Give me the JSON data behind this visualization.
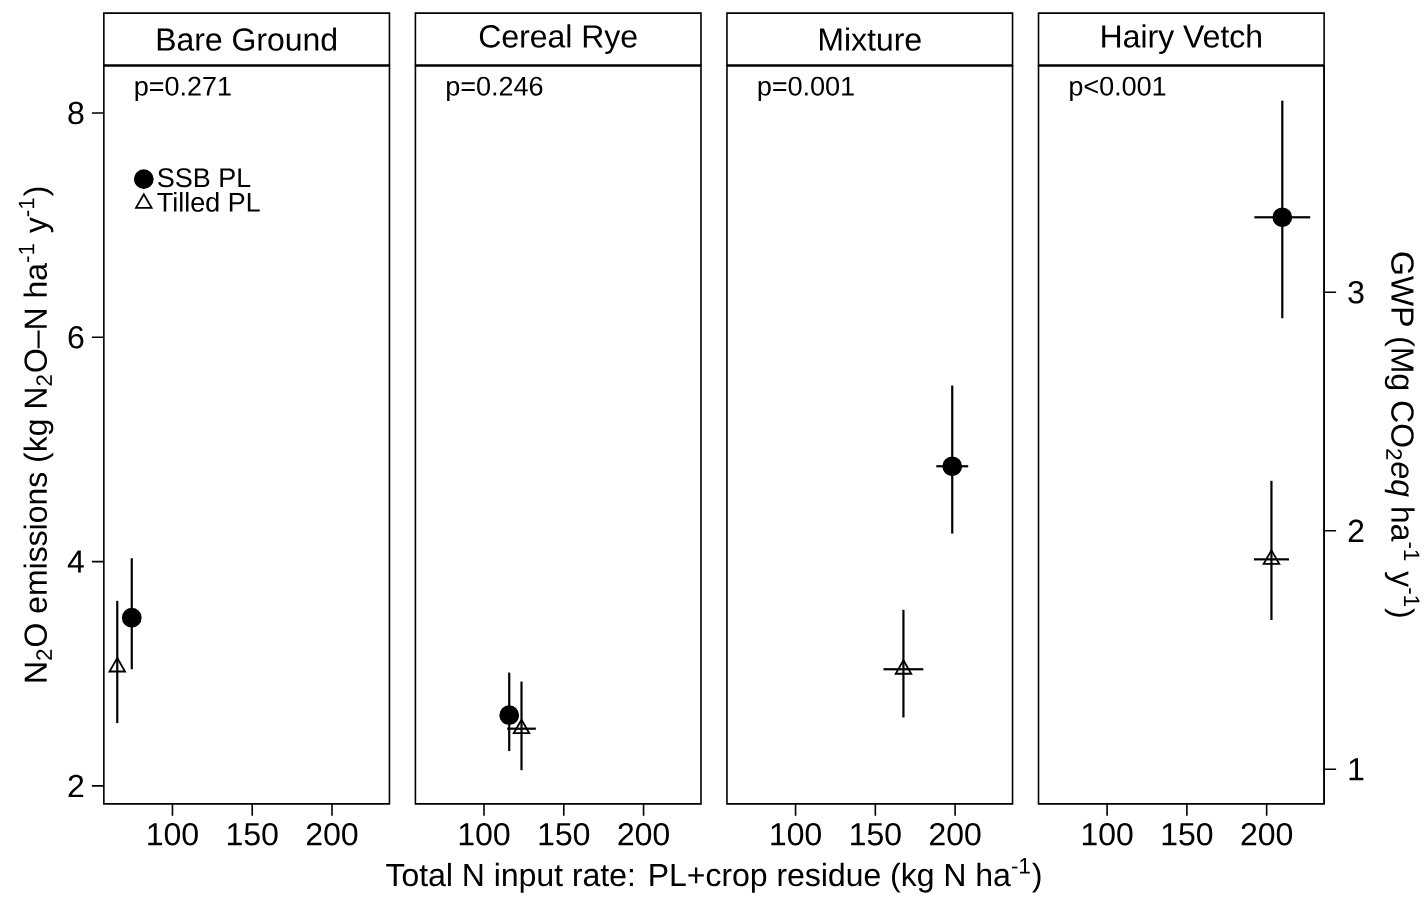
{
  "chart_data": [
    {
      "type": "scatter",
      "title": "Bare Ground",
      "xlabel": "Total N input rate: PL+crop residue (kg N ha$^{-1}$)",
      "ylabel": "N$_{2}$O emissions (kg N$_{2}$O–N ha$^{-1}$ y$^{-1}$)",
      "legend": "top left",
      "annotations": [
        "p=0.271"
      ],
      "xlim": [
        57,
        236
      ],
      "ylim": [
        1.84,
        8.42
      ],
      "xticks": [
        100,
        150,
        200
      ],
      "yticks": [
        2,
        4,
        6,
        8
      ],
      "series": [
        {
          "name": "SSB PL",
          "color": "#000000",
          "marker": "circle",
          "x": [
            74.5
          ],
          "values": [
            3.5
          ],
          "errors": [
            [
              3.04,
              4.03
            ]
          ]
        },
        {
          "name": "Tilled PL",
          "color": "#000000",
          "marker": "triangle",
          "x": [
            65.4
          ],
          "values": [
            3.06
          ],
          "errors": [
            [
              2.56,
              3.65
            ]
          ]
        }
      ]
    },
    {
      "type": "scatter",
      "title": "Cereal Rye",
      "annotations": [
        "p=0.246"
      ],
      "tick_labels": "x",
      "xlim": [
        57,
        236
      ],
      "ylim": [
        1.84,
        8.42
      ],
      "xticks": [
        100,
        150,
        200
      ],
      "series": [
        {
          "color": "#000000",
          "marker": "circle",
          "x": [
            115.8
          ],
          "values": [
            2.63
          ],
          "errors": [
            [
              2.31,
              3.01
            ]
          ]
        },
        {
          "color": "#000000",
          "marker": "triangle",
          "x": [
            123.5
          ],
          "values": [
            2.51
          ],
          "errors": [
            [
              2.14,
              2.93
            ]
          ],
          "xerrors": [
            9
          ]
        }
      ]
    },
    {
      "type": "scatter",
      "title": "Mixture",
      "annotations": [
        "p=0.001"
      ],
      "tick_labels": "x",
      "xlim": [
        57,
        236
      ],
      "ylim": [
        1.84,
        8.42
      ],
      "xticks": [
        100,
        150,
        200
      ],
      "series": [
        {
          "color": "#000000",
          "marker": "circle",
          "x": [
            198.2
          ],
          "values": [
            4.85
          ],
          "errors": [
            [
              4.25,
              5.57
            ]
          ],
          "xerrors": [
            10
          ]
        },
        {
          "color": "#000000",
          "marker": "triangle",
          "x": [
            167.6
          ],
          "values": [
            3.04
          ],
          "errors": [
            [
              2.61,
              3.57
            ]
          ],
          "xerrors": [
            12.5
          ]
        }
      ]
    },
    {
      "type": "scatter",
      "title": "Hairy Vetch",
      "annotations": [
        "p<0.001"
      ],
      "tick_labels": "x",
      "y2label": "GWP (Mg CO$_{2}$*eq* ha$^{-1}$ y$^{-1}$)",
      "xlim": [
        57,
        236
      ],
      "ylim": [
        1.84,
        8.42
      ],
      "y2lim": [
        0.855,
        3.949
      ],
      "xticks": [
        100,
        150,
        200
      ],
      "y2ticks": [
        {
          "value": 1,
          "label": "1"
        },
        {
          "value": 2,
          "label": "2"
        },
        {
          "value": 3,
          "label": "3"
        }
      ],
      "series": [
        {
          "color": "#000000",
          "marker": "circle",
          "x": [
            209.8
          ],
          "values": [
            7.07
          ],
          "errors": [
            [
              6.17,
              8.11
            ]
          ],
          "xerrors": [
            17.5
          ]
        },
        {
          "color": "#000000",
          "marker": "triangle",
          "x": [
            203
          ],
          "values": [
            4.02
          ],
          "errors": [
            [
              3.48,
              4.72
            ]
          ],
          "xerrors": [
            11
          ]
        }
      ]
    }
  ]
}
